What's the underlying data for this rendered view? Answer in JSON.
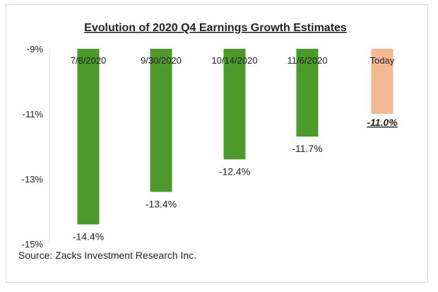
{
  "chart_data": {
    "type": "bar",
    "title": "Evolution of 2020 Q4 Earnings Growth Estimates",
    "categories": [
      "7/8/2020",
      "9/30/2020",
      "10/14/2020",
      "11/6/2020",
      "Today"
    ],
    "values": [
      -14.4,
      -13.4,
      -12.4,
      -11.7,
      -11.0
    ],
    "value_labels": [
      "-14.4%",
      "-13.4%",
      "-12.4%",
      "-11.7%",
      "-11.0%"
    ],
    "ylim": [
      -15,
      -9
    ],
    "yticks": [
      -9,
      -11,
      -13,
      -15
    ],
    "ytick_labels": [
      "-9%",
      "-11%",
      "-13%",
      "-15%"
    ],
    "xlabel": "",
    "ylabel": "",
    "legend": "none",
    "grid": false
  },
  "colors": {
    "bar": "#4c9a2a",
    "highlight_bar": "#f4b893",
    "text": "#222222"
  },
  "highlight_index": 4,
  "source": "Source: Zacks Investment Research Inc."
}
